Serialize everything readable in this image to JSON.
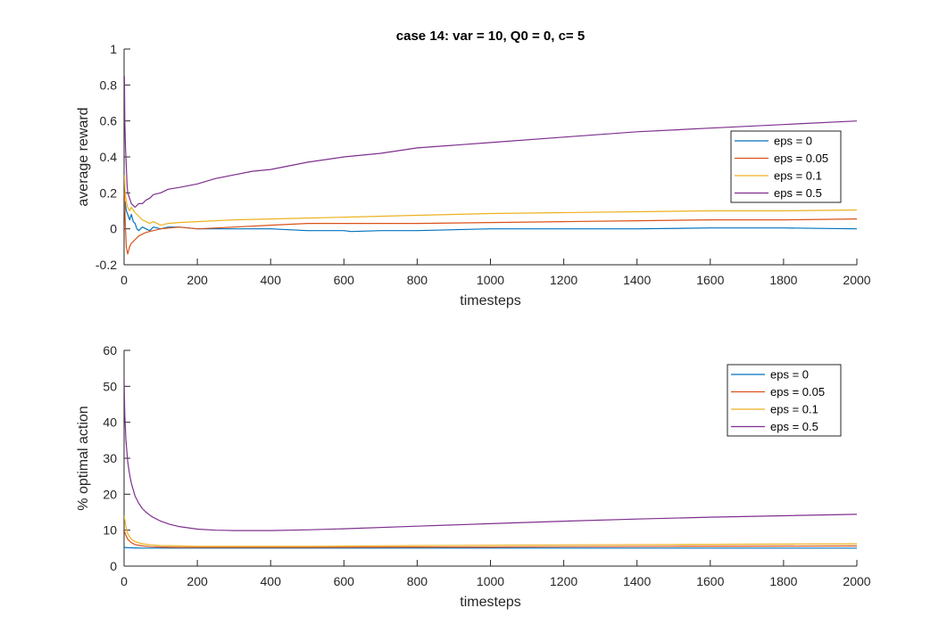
{
  "chart_data": [
    {
      "type": "line",
      "title": "case 14: var = 10, Q0 = 0, c= 5",
      "xlabel": "timesteps",
      "ylabel": "average reward",
      "xlim": [
        0,
        2000
      ],
      "ylim": [
        -0.2,
        1
      ],
      "xticks": [
        "0",
        "200",
        "400",
        "600",
        "800",
        "1000",
        "1200",
        "1400",
        "1600",
        "1800",
        "2000"
      ],
      "yticks": [
        "-0.2",
        "0",
        "0.2",
        "0.4",
        "0.6",
        "0.8",
        "1"
      ],
      "grid": false,
      "legend_position": "right",
      "series": [
        {
          "name": "eps = 0",
          "color": "#0072BD",
          "x": [
            1,
            3,
            6,
            10,
            15,
            20,
            25,
            30,
            35,
            40,
            50,
            60,
            70,
            80,
            100,
            120,
            150,
            200,
            300,
            400,
            500,
            600,
            620,
            700,
            800,
            1000,
            1200,
            1400,
            1600,
            1800,
            2000
          ],
          "y": [
            0.1,
            0.15,
            0.1,
            0.08,
            0.05,
            0.08,
            0.04,
            0.03,
            0.0,
            -0.01,
            0.01,
            0.0,
            -0.01,
            0.01,
            0.0,
            0.01,
            0.01,
            0.0,
            0.0,
            0.0,
            -0.01,
            -0.01,
            -0.015,
            -0.01,
            -0.01,
            0.0,
            0.0,
            0.0,
            0.005,
            0.005,
            0.0
          ]
        },
        {
          "name": "eps = 0.05",
          "color": "#D95319",
          "x": [
            1,
            3,
            6,
            10,
            15,
            20,
            30,
            40,
            50,
            60,
            80,
            100,
            150,
            200,
            300,
            400,
            500,
            600,
            800,
            1000,
            1200,
            1400,
            1600,
            1800,
            2000
          ],
          "y": [
            0.2,
            0.05,
            -0.1,
            -0.14,
            -0.1,
            -0.08,
            -0.06,
            -0.04,
            -0.03,
            -0.02,
            -0.01,
            0.0,
            0.01,
            0.0,
            0.01,
            0.02,
            0.03,
            0.03,
            0.03,
            0.035,
            0.04,
            0.045,
            0.05,
            0.05,
            0.055
          ]
        },
        {
          "name": "eps = 0.1",
          "color": "#EDB120",
          "x": [
            1,
            3,
            6,
            10,
            15,
            20,
            30,
            40,
            50,
            60,
            70,
            80,
            100,
            120,
            150,
            200,
            300,
            400,
            500,
            600,
            800,
            1000,
            1200,
            1400,
            1600,
            1800,
            2000
          ],
          "y": [
            0.3,
            0.2,
            0.15,
            0.12,
            0.1,
            0.12,
            0.09,
            0.07,
            0.05,
            0.04,
            0.03,
            0.04,
            0.02,
            0.03,
            0.035,
            0.04,
            0.05,
            0.055,
            0.06,
            0.065,
            0.075,
            0.085,
            0.09,
            0.095,
            0.1,
            0.1,
            0.105
          ]
        },
        {
          "name": "eps = 0.5",
          "color": "#7E2F8E",
          "x": [
            1,
            2,
            4,
            6,
            8,
            10,
            15,
            20,
            25,
            30,
            40,
            50,
            60,
            70,
            80,
            100,
            120,
            150,
            200,
            250,
            300,
            350,
            400,
            500,
            600,
            700,
            800,
            1000,
            1200,
            1400,
            1600,
            1800,
            2000
          ],
          "y": [
            0.85,
            0.6,
            0.45,
            0.35,
            0.25,
            0.2,
            0.17,
            0.14,
            0.13,
            0.12,
            0.14,
            0.14,
            0.16,
            0.17,
            0.19,
            0.2,
            0.22,
            0.23,
            0.25,
            0.28,
            0.3,
            0.32,
            0.33,
            0.37,
            0.4,
            0.42,
            0.45,
            0.48,
            0.51,
            0.54,
            0.56,
            0.58,
            0.6
          ]
        }
      ]
    },
    {
      "type": "line",
      "title": "",
      "xlabel": "timesteps",
      "ylabel": "% optimal action",
      "xlim": [
        0,
        2000
      ],
      "ylim": [
        0,
        60
      ],
      "xticks": [
        "0",
        "200",
        "400",
        "600",
        "800",
        "1000",
        "1200",
        "1400",
        "1600",
        "1800",
        "2000"
      ],
      "yticks": [
        "0",
        "10",
        "20",
        "30",
        "40",
        "50",
        "60"
      ],
      "grid": false,
      "legend_position": "top-right",
      "series": [
        {
          "name": "eps = 0",
          "color": "#0072BD",
          "x": [
            0,
            10,
            50,
            100,
            200,
            500,
            1000,
            1500,
            2000
          ],
          "y": [
            5.2,
            5.1,
            5.0,
            5.0,
            5.0,
            5.0,
            5.0,
            5.0,
            5.0
          ]
        },
        {
          "name": "eps = 0.05",
          "color": "#D95319",
          "x": [
            0,
            5,
            10,
            20,
            30,
            50,
            75,
            100,
            150,
            200,
            300,
            500,
            800,
            1000,
            1200,
            1500,
            2000
          ],
          "y": [
            10,
            8.5,
            7.5,
            6.5,
            6.0,
            5.6,
            5.4,
            5.3,
            5.2,
            5.2,
            5.2,
            5.2,
            5.3,
            5.3,
            5.4,
            5.5,
            5.6
          ]
        },
        {
          "name": "eps = 0.1",
          "color": "#EDB120",
          "x": [
            0,
            5,
            10,
            20,
            30,
            50,
            75,
            100,
            150,
            200,
            300,
            500,
            800,
            1000,
            1200,
            1500,
            2000
          ],
          "y": [
            14,
            11,
            9,
            7.5,
            6.8,
            6.2,
            5.9,
            5.7,
            5.6,
            5.5,
            5.5,
            5.5,
            5.7,
            5.8,
            5.9,
            6.0,
            6.2
          ]
        },
        {
          "name": "eps = 0.5",
          "color": "#7E2F8E",
          "x": [
            0,
            2,
            5,
            10,
            15,
            20,
            30,
            40,
            50,
            60,
            75,
            100,
            125,
            150,
            200,
            250,
            300,
            400,
            500,
            600,
            800,
            1000,
            1200,
            1400,
            1600,
            1800,
            2000
          ],
          "y": [
            52,
            42,
            35,
            29,
            25.5,
            23,
            19.5,
            17.5,
            16,
            15,
            13.8,
            12.5,
            11.6,
            11,
            10.3,
            10,
            9.9,
            9.9,
            10.1,
            10.4,
            11.1,
            11.8,
            12.5,
            13.1,
            13.6,
            14.0,
            14.4
          ]
        }
      ]
    }
  ]
}
